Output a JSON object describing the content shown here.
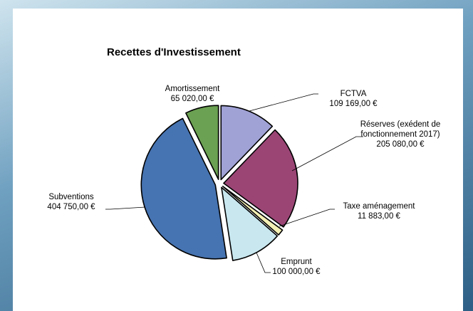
{
  "chart_data": {
    "type": "pie",
    "title": "Recettes d'Investissement",
    "categories": [
      "FCTVA",
      "Réserves (exédent de fonctionnement 2017)",
      "Taxe aménagement",
      "Emprunt",
      "Subventions",
      "Amortissement"
    ],
    "values": [
      109169,
      205080,
      11883,
      100000,
      404750,
      65020
    ],
    "value_labels": [
      "109 169,00 €",
      "205 080,00 €",
      "11 883,00 €",
      "100 000,00 €",
      "404 750,00 €",
      "65 020,00 €"
    ],
    "colors": [
      "#a0a2d6",
      "#9b4575",
      "#f4efb4",
      "#c8e7ef",
      "#4673b1",
      "#6ba152"
    ]
  }
}
